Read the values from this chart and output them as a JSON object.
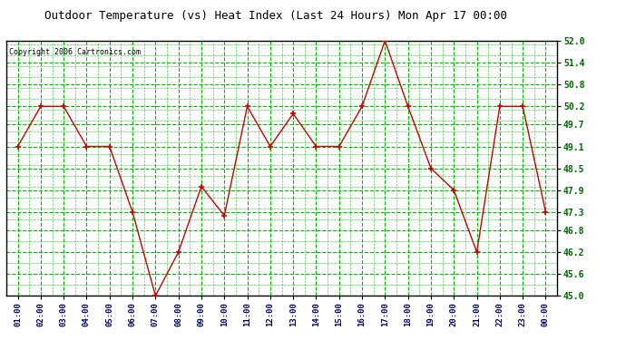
{
  "title": "Outdoor Temperature (vs) Heat Index (Last 24 Hours) Mon Apr 17 00:00",
  "copyright": "Copyright 2006 Cartronics.com",
  "x_labels": [
    "01:00",
    "02:00",
    "03:00",
    "04:00",
    "05:00",
    "06:00",
    "07:00",
    "08:00",
    "09:00",
    "10:00",
    "11:00",
    "12:00",
    "13:00",
    "14:00",
    "15:00",
    "16:00",
    "17:00",
    "18:00",
    "19:00",
    "20:00",
    "21:00",
    "22:00",
    "23:00",
    "00:00"
  ],
  "y_values": [
    49.1,
    50.2,
    50.2,
    49.1,
    49.1,
    47.3,
    45.0,
    46.2,
    48.0,
    47.2,
    50.2,
    49.1,
    50.0,
    49.1,
    49.1,
    50.2,
    52.0,
    50.2,
    48.5,
    47.9,
    46.2,
    50.2,
    50.2,
    47.3
  ],
  "y_min": 45.0,
  "y_max": 52.0,
  "y_ticks": [
    45.0,
    45.6,
    46.2,
    46.8,
    47.3,
    47.9,
    48.5,
    49.1,
    49.7,
    50.2,
    50.8,
    51.4,
    52.0
  ],
  "line_color": "#cc0000",
  "marker_color": "#cc0000",
  "bg_color": "#ffffff",
  "plot_bg_color": "#ffffff",
  "grid_color": "#00bb00",
  "title_color": "#000000",
  "copyright_color": "#000000",
  "tick_label_color": "#000066",
  "tick_label_color_y": "#006600"
}
